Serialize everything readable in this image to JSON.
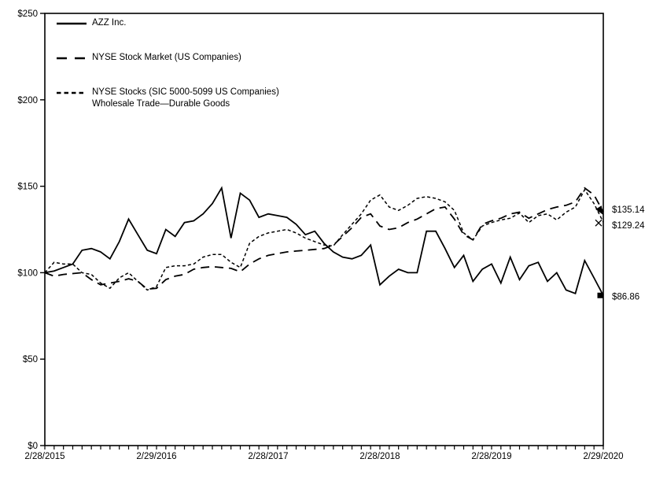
{
  "chart_data": {
    "type": "line",
    "title": "",
    "ylim": [
      0,
      250
    ],
    "y_ticks": [
      0,
      50,
      100,
      150,
      200,
      250
    ],
    "y_tick_labels": [
      "$0",
      "$50",
      "$100",
      "$150",
      "$200",
      "$250"
    ],
    "x_tick_label_months": [
      0,
      12,
      24,
      36,
      48,
      60
    ],
    "x_tick_labels": [
      "2/28/2015",
      "2/29/2016",
      "2/28/2017",
      "2/28/2018",
      "2/28/2019",
      "2/29/2020"
    ],
    "months": 60,
    "grid": false,
    "legend_position": "top-left-inside",
    "colors": {
      "line": "#000000",
      "background": "#ffffff"
    },
    "series": [
      {
        "id": "azz",
        "name": "AZZ Inc.",
        "style": "solid",
        "end_marker": "square",
        "end_label": "$86.86",
        "end_value": 86.86,
        "values": [
          100,
          101,
          103,
          105,
          113,
          114,
          112,
          108,
          118,
          131,
          122,
          113,
          111,
          125,
          121,
          129,
          130,
          134,
          140,
          149,
          120,
          146,
          142,
          132,
          134,
          133,
          132,
          128,
          122,
          124,
          117,
          112,
          109,
          108,
          110,
          116,
          93,
          98,
          102,
          100,
          100,
          124,
          124,
          114,
          103,
          110,
          95,
          102,
          105,
          94,
          109,
          96,
          104,
          106,
          95,
          100,
          90,
          88,
          107,
          97,
          86.86
        ]
      },
      {
        "id": "nyse-composite",
        "name": "NYSE Stock Market (US Companies)",
        "style": "long-dash",
        "end_marker": "arrow",
        "end_label": "$135.14",
        "end_value": 135.14,
        "values": [
          100,
          98,
          99,
          99.5,
          100,
          96,
          93,
          94,
          95,
          96.5,
          95,
          90.5,
          91,
          96,
          98,
          99,
          102,
          103,
          103.5,
          103,
          102.5,
          100.5,
          105,
          108,
          110,
          111,
          112,
          112.5,
          113,
          113.5,
          114,
          116,
          121,
          126,
          132,
          134,
          127,
          125,
          126,
          129,
          131,
          134,
          137,
          138,
          131,
          122,
          119,
          128,
          130,
          131.5,
          134,
          135,
          131.5,
          134,
          136.5,
          138,
          139,
          141,
          149,
          145,
          135.14
        ]
      },
      {
        "id": "sic-peer",
        "name": "NYSE Stocks (SIC 5000-5099 US Companies) Wholesale Trade—Durable Goods",
        "style": "short-dash",
        "end_marker": "x",
        "end_label": "$129.24",
        "end_value": 129.24,
        "values": [
          100,
          106,
          105,
          105,
          100,
          99,
          94,
          91,
          97,
          100,
          95,
          90,
          92,
          103,
          104,
          104,
          105,
          109,
          110.5,
          110.5,
          106,
          103,
          117,
          121,
          123,
          124,
          125,
          123,
          120,
          118,
          116,
          115.5,
          122,
          128,
          134,
          142,
          145,
          138,
          136,
          139,
          143,
          144,
          143,
          141,
          136,
          123,
          119,
          127,
          129,
          130.5,
          131.5,
          134.5,
          129,
          133,
          134,
          130.5,
          135,
          138,
          148,
          140,
          129.24
        ]
      }
    ]
  }
}
